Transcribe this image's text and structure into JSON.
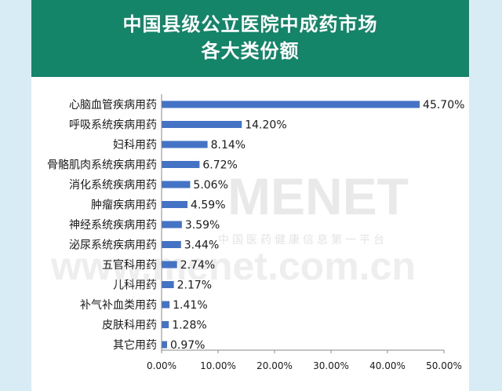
{
  "header": {
    "title_line1": "中国县级公立医院中成药市场",
    "title_line2": "各大类份额"
  },
  "watermark": {
    "brand": "MENET",
    "slogan": "中国医药健康信息第一平台",
    "url": "www.menet.com.cn"
  },
  "colors": {
    "bar": "#4472c4",
    "header_bg": "#148569",
    "page_bg": "#d7ecf4"
  },
  "chart_data": {
    "type": "bar",
    "orientation": "horizontal",
    "categories": [
      "心脑血管疾病用药",
      "呼吸系统疾病用药",
      "妇科用药",
      "骨骼肌肉系统疾病用药",
      "消化系统疾病用药",
      "肿瘤疾病用药",
      "神经系统疾病用药",
      "泌尿系统疾病用药",
      "五官科用药",
      "儿科用药",
      "补气补血类用药",
      "皮肤科用药",
      "其它用药"
    ],
    "values": [
      45.7,
      14.2,
      8.14,
      6.72,
      5.06,
      4.59,
      3.59,
      3.44,
      2.74,
      2.17,
      1.41,
      1.28,
      0.97
    ],
    "value_labels": [
      "45.70%",
      "14.20%",
      "8.14%",
      "6.72%",
      "5.06%",
      "4.59%",
      "3.59%",
      "3.44%",
      "2.74%",
      "2.17%",
      "1.41%",
      "1.28%",
      "0.97%"
    ],
    "x_ticks": [
      0,
      10,
      20,
      30,
      40,
      50
    ],
    "x_tick_labels": [
      "0.00%",
      "10.00%",
      "20.00%",
      "30.00%",
      "40.00%",
      "50.00%"
    ],
    "xlim": [
      0,
      50
    ],
    "grid": false,
    "legend": "none"
  }
}
